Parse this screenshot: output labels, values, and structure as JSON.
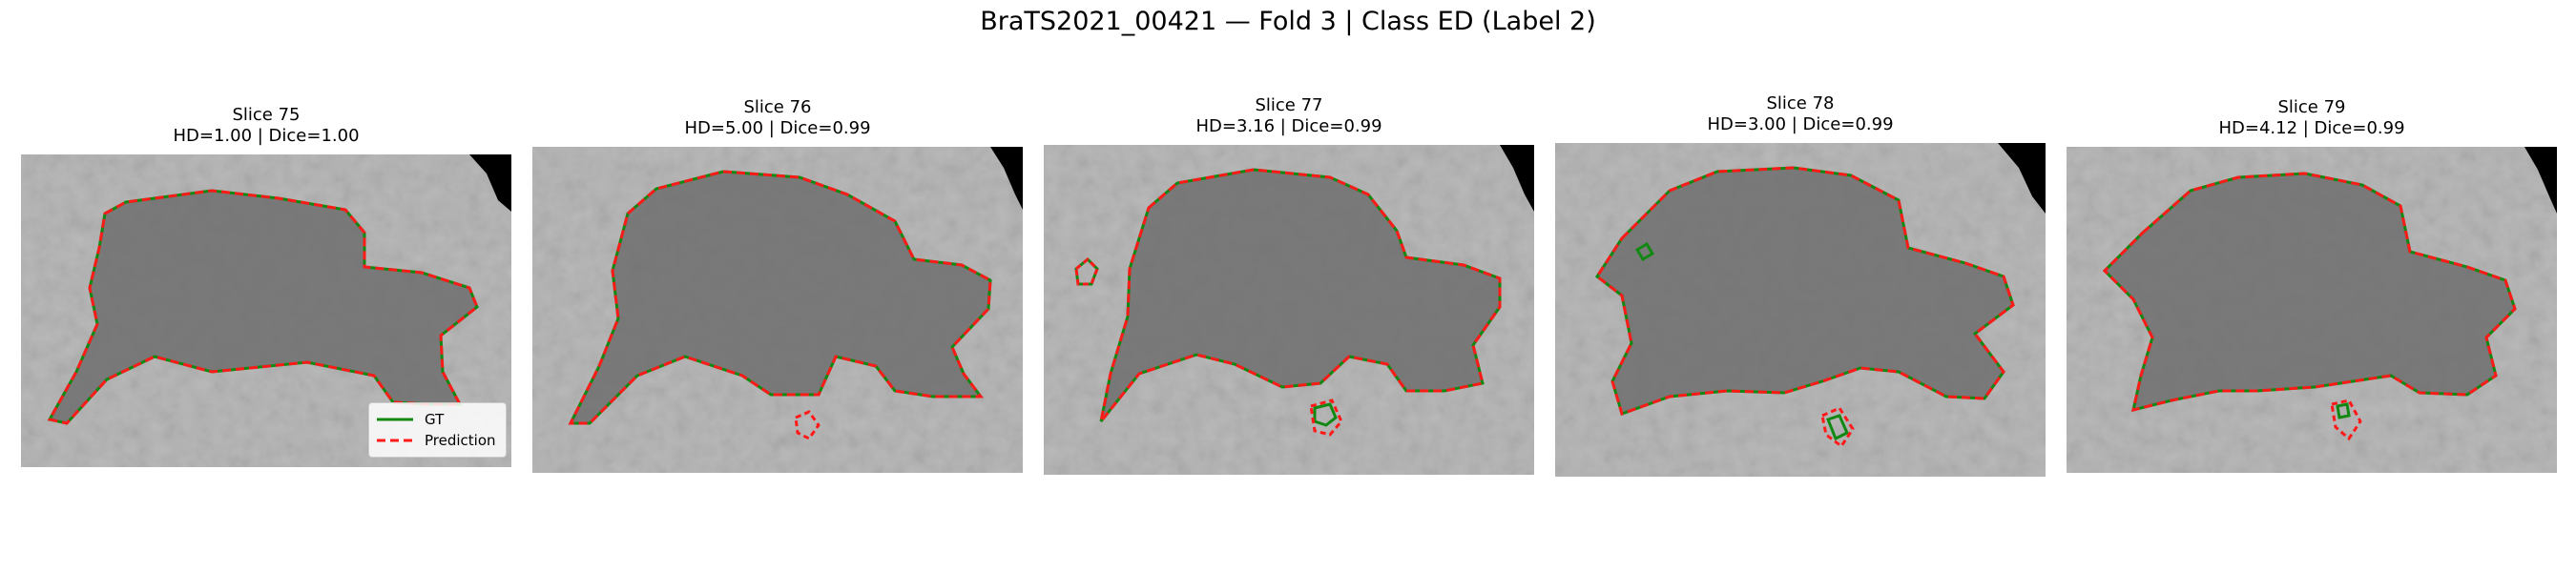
{
  "suptitle": "BraTS2021_00421 — Fold 3 | Class ED (Label 2)",
  "panels": [
    {
      "title": "Slice 75",
      "metrics": "HD=1.00 | Dice=1.00"
    },
    {
      "title": "Slice 76",
      "metrics": "HD=5.00 | Dice=0.99"
    },
    {
      "title": "Slice 77",
      "metrics": "HD=3.16 | Dice=0.99"
    },
    {
      "title": "Slice 78",
      "metrics": "HD=3.00 | Dice=0.99"
    },
    {
      "title": "Slice 79",
      "metrics": "HD=4.12 | Dice=0.99"
    }
  ],
  "legend": {
    "gt_label": "GT",
    "prediction_label": "Prediction"
  },
  "colors": {
    "gt": "#118811",
    "prediction": "#ff1a1a"
  }
}
